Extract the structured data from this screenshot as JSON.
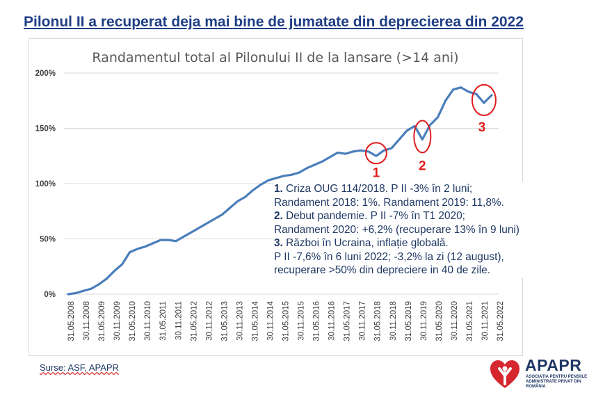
{
  "headline": "Pilonul II a recuperat deja mai bine de jumatate din deprecierea din 2022",
  "annotations": {
    "item1_num": "1.",
    "item1_line1": "Criza OUG 114/2018. P II -3% în 2 luni;",
    "item1_line2": "Randament 2018: 1%. Randament 2019: 11,8%.",
    "item2_num": "2.",
    "item2_line1": "Debut pandemie. P II -7% în T1 2020;",
    "item2_line2": "Randament 2020: +6,2% (recuperare 13% în 9 luni)",
    "item3_num": "3.",
    "item3_line1": "Război în Ucraina, inflație globală.",
    "item3_line2": "P II -7,6% în 6 luni 2022; -3,2% la zi (12 august),",
    "item3_line3": "recuperare >50% din depreciere in 40 de zile."
  },
  "source": "Surse: ASF, APAPR",
  "logo": {
    "name": "APAPR",
    "subtitle": "ASOCIAȚIA PENTRU PENSIILE ADMINISTRATE PRIVAT DIN ROMÂNIA"
  },
  "colors": {
    "headline": "#1f3e86",
    "line": "#4a7ebb",
    "marker": "#e01b1b",
    "text": "#1f3864"
  },
  "chart_data": {
    "type": "line",
    "title": "Randamentul total al Pilonului II de la lansare (>14 ani)",
    "xlabel": "",
    "ylabel": "",
    "ylim": [
      0,
      200
    ],
    "y_ticks": [
      "0%",
      "50%",
      "100%",
      "150%",
      "200%"
    ],
    "x_ticks": [
      "31.05.2008",
      "30.11.2008",
      "31.05.2009",
      "30.11.2009",
      "31.05.2010",
      "30.11.2010",
      "31.05.2011",
      "30.11.2011",
      "31.05.2012",
      "30.11.2012",
      "31.05.2013",
      "30.11.2013",
      "31.05.2014",
      "30.11.2014",
      "31.05.2015",
      "30.11.2015",
      "31.05.2016",
      "30.11.2016",
      "31.05.2017",
      "30.11.2017",
      "31.05.2018",
      "30.11.2018",
      "31.05.2019",
      "30.11.2019",
      "31.05.2020",
      "30.11.2020",
      "31.05.2021",
      "30.11.2021",
      "31.05.2022"
    ],
    "series": [
      {
        "values": [
          0,
          1,
          3,
          5,
          9,
          14,
          21,
          27,
          38,
          41,
          43,
          46,
          49,
          49,
          48,
          52,
          56,
          60,
          64,
          68,
          72,
          78,
          84,
          88,
          94,
          99,
          103,
          105,
          107,
          108,
          110,
          114,
          117,
          120,
          124,
          128,
          127,
          129,
          130,
          129,
          125,
          130,
          132,
          140,
          148,
          152,
          140,
          153,
          160,
          175,
          185,
          187,
          183,
          181,
          173,
          180
        ]
      }
    ],
    "grid": "horizontal",
    "markers": [
      {
        "label": "1"
      },
      {
        "label": "2"
      },
      {
        "label": "3"
      }
    ]
  }
}
